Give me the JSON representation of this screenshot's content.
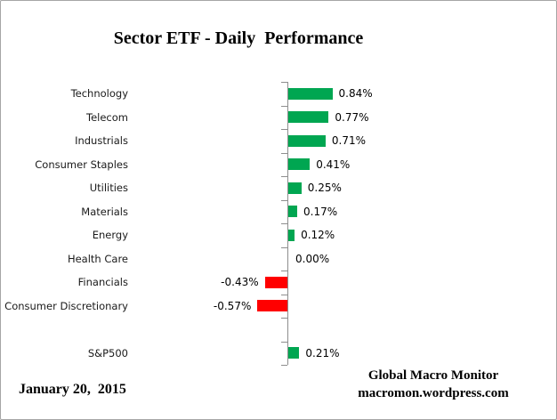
{
  "window": {
    "background": "#ffffff",
    "border_color": "#a6a6a6"
  },
  "chart_data": {
    "type": "bar",
    "orientation": "horizontal",
    "title": "Sector ETF - Daily  Performance",
    "categories": [
      "Technology",
      "Telecom",
      "Industrials",
      "Consumer Staples",
      "Utilities",
      "Materials",
      "Energy",
      "Health Care",
      "Financials",
      "Consumer Discretionary",
      "S&P500"
    ],
    "values": [
      0.84,
      0.77,
      0.71,
      0.41,
      0.25,
      0.17,
      0.12,
      0.0,
      -0.43,
      -0.57,
      0.21
    ],
    "value_labels": [
      "0.84%",
      "0.77%",
      "0.71%",
      "0.41%",
      "0.25%",
      "0.17%",
      "0.12%",
      "0.00%",
      "-0.43%",
      "-0.57%",
      "0.21%"
    ],
    "row_slots": [
      0,
      1,
      2,
      3,
      4,
      5,
      6,
      7,
      8,
      9,
      null,
      10
    ],
    "xlabel": "",
    "ylabel": "",
    "legend": "none",
    "gridlines": false,
    "positive_color": "#00a651",
    "negative_color": "#ff0000",
    "axis_color": "#8e8e8e"
  },
  "footer": {
    "date": "January 20,  2015",
    "attribution_line1": "Global Macro Monitor",
    "attribution_line2": "macromon.wordpress.com"
  }
}
